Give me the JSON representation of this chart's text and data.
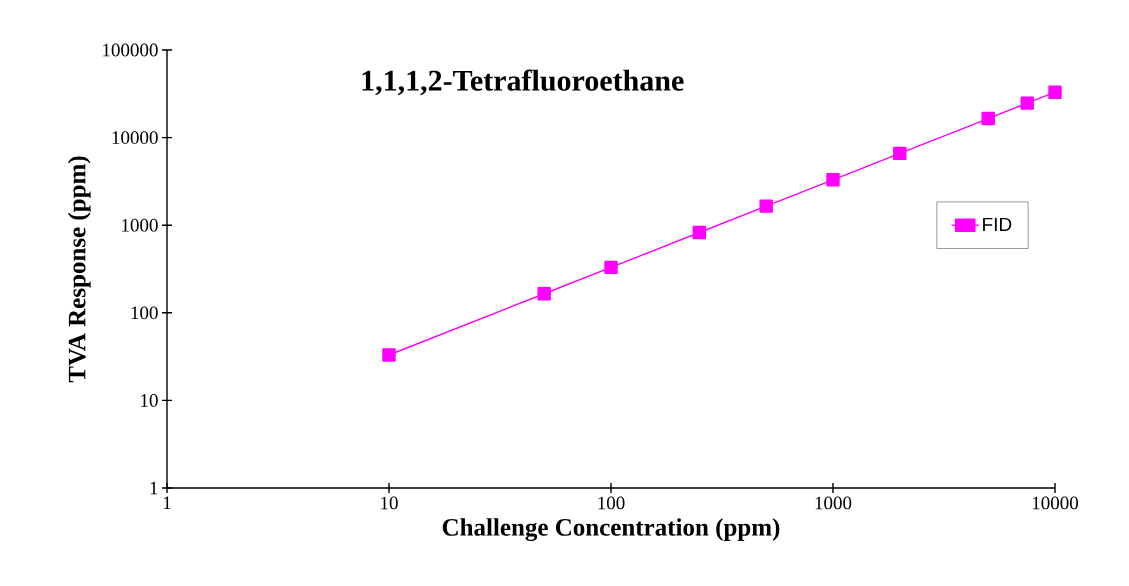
{
  "chart_data": {
    "type": "line",
    "title": "1,1,1,2-Tetrafluoroethane",
    "xlabel": "Challenge Concentration (ppm)",
    "ylabel": "TVA Response (ppm)",
    "x": [
      10,
      50,
      100,
      250,
      500,
      1000,
      2000,
      5000,
      7500,
      10000
    ],
    "series": [
      {
        "name": "FID",
        "color": "#ff00ff",
        "values": [
          33,
          165,
          330,
          825,
          1650,
          3300,
          6600,
          16500,
          24750,
          33000
        ]
      }
    ],
    "log": "xy",
    "xlim": [
      1,
      10000
    ],
    "ylim": [
      1,
      100000
    ],
    "xticks": [
      1,
      10,
      100,
      1000,
      10000
    ],
    "yticks": [
      1,
      10,
      100,
      1000,
      10000,
      100000
    ],
    "grid": false,
    "legend": "right",
    "marker": "square",
    "line_style": "solid"
  }
}
